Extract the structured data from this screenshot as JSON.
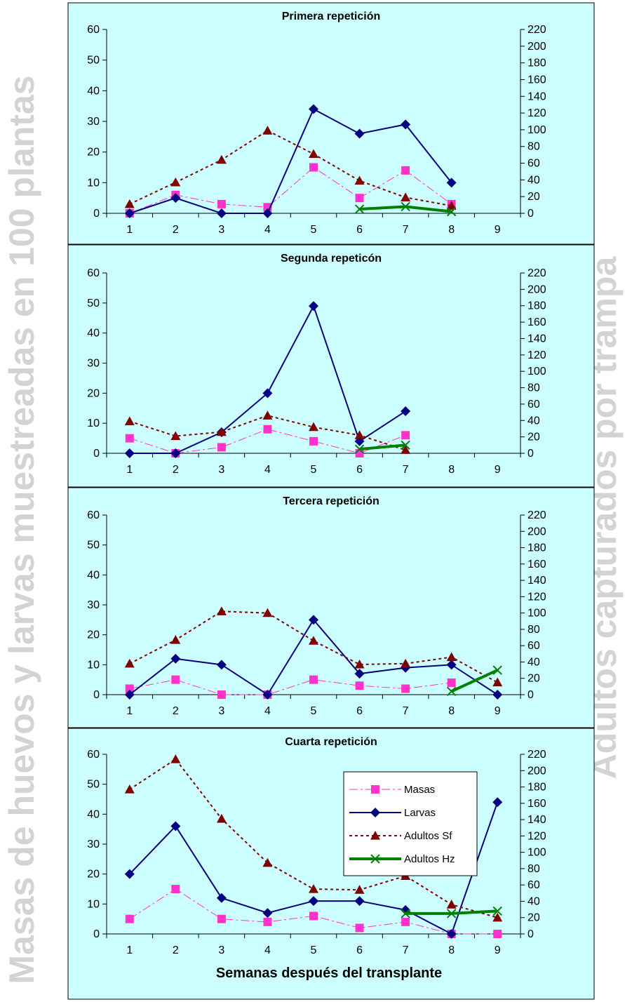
{
  "y_axis_title": "Masas de huevos y larvas muestreadas en 100 plantas",
  "y2_axis_title": "Adultos capturados por trampa",
  "x_axis_title": "Semanas después del transplante",
  "colors": {
    "background": "#ccffff",
    "masas": "#ff33cc",
    "larvas": "#000080",
    "adultos_sf": "#800000",
    "adultos_hz": "#008000",
    "side_label": "#d3d3d3"
  },
  "legend": {
    "masas": "Masas",
    "larvas": "Larvas",
    "adultos_sf": "Adultos Sf",
    "adultos_hz": "Adultos Hz"
  },
  "chart_data": [
    {
      "type": "line",
      "title": "Primera repetición",
      "x": [
        1,
        2,
        3,
        4,
        5,
        6,
        7,
        8,
        9
      ],
      "ylim": [
        0,
        60
      ],
      "y2lim": [
        0,
        220
      ],
      "yticks": [
        0,
        10,
        20,
        30,
        40,
        50,
        60
      ],
      "y2ticks": [
        0,
        20,
        40,
        60,
        80,
        100,
        120,
        140,
        160,
        180,
        200,
        220
      ],
      "series": [
        {
          "name": "Masas",
          "axis": "left",
          "values": [
            0,
            6,
            3,
            2,
            15,
            5,
            14,
            3,
            null
          ]
        },
        {
          "name": "Larvas",
          "axis": "left",
          "values": [
            0,
            5,
            0,
            0,
            34,
            26,
            29,
            10,
            null
          ]
        },
        {
          "name": "Adultos Sf",
          "axis": "right",
          "values": [
            11,
            37,
            64,
            99,
            71,
            39,
            19,
            9,
            null
          ]
        },
        {
          "name": "Adultos Hz",
          "axis": "right",
          "values": [
            null,
            null,
            null,
            null,
            null,
            5,
            8,
            2,
            null
          ]
        }
      ]
    },
    {
      "type": "line",
      "title": "Segunda repeticón",
      "x": [
        1,
        2,
        3,
        4,
        5,
        6,
        7,
        8,
        9
      ],
      "ylim": [
        0,
        60
      ],
      "y2lim": [
        0,
        220
      ],
      "yticks": [
        0,
        10,
        20,
        30,
        40,
        50,
        60
      ],
      "y2ticks": [
        0,
        20,
        40,
        60,
        80,
        100,
        120,
        140,
        160,
        180,
        200,
        220
      ],
      "series": [
        {
          "name": "Masas",
          "axis": "left",
          "values": [
            5,
            0,
            2,
            8,
            4,
            0,
            6,
            null,
            null
          ]
        },
        {
          "name": "Larvas",
          "axis": "left",
          "values": [
            0,
            0,
            7,
            20,
            49,
            4,
            14,
            null,
            null
          ]
        },
        {
          "name": "Adultos Sf",
          "axis": "right",
          "values": [
            39,
            21,
            26,
            46,
            32,
            22,
            4,
            null,
            null
          ]
        },
        {
          "name": "Adultos Hz",
          "axis": "right",
          "values": [
            null,
            null,
            null,
            null,
            null,
            5,
            10,
            null,
            null
          ]
        }
      ]
    },
    {
      "type": "line",
      "title": "Tercera repetición",
      "x": [
        1,
        2,
        3,
        4,
        5,
        6,
        7,
        8,
        9
      ],
      "ylim": [
        0,
        60
      ],
      "y2lim": [
        0,
        220
      ],
      "yticks": [
        0,
        10,
        20,
        30,
        40,
        50,
        60
      ],
      "y2ticks": [
        0,
        20,
        40,
        60,
        80,
        100,
        120,
        140,
        160,
        180,
        200,
        220
      ],
      "series": [
        {
          "name": "Masas",
          "axis": "left",
          "values": [
            2,
            5,
            0,
            0,
            5,
            3,
            2,
            4,
            null
          ]
        },
        {
          "name": "Larvas",
          "axis": "left",
          "values": [
            0,
            12,
            10,
            0,
            25,
            7,
            9,
            10,
            0
          ]
        },
        {
          "name": "Adultos Sf",
          "axis": "right",
          "values": [
            38,
            67,
            102,
            100,
            66,
            37,
            38,
            46,
            15
          ]
        },
        {
          "name": "Adultos Hz",
          "axis": "right",
          "values": [
            null,
            null,
            null,
            null,
            null,
            null,
            null,
            4,
            30
          ]
        }
      ]
    },
    {
      "type": "line",
      "title": "Cuarta repetición",
      "x": [
        1,
        2,
        3,
        4,
        5,
        6,
        7,
        8,
        9
      ],
      "ylim": [
        0,
        60
      ],
      "y2lim": [
        0,
        220
      ],
      "yticks": [
        0,
        10,
        20,
        30,
        40,
        50,
        60
      ],
      "y2ticks": [
        0,
        20,
        40,
        60,
        80,
        100,
        120,
        140,
        160,
        180,
        200,
        220
      ],
      "legend": true,
      "series": [
        {
          "name": "Masas",
          "axis": "left",
          "values": [
            5,
            15,
            5,
            4,
            6,
            2,
            4,
            0,
            0
          ]
        },
        {
          "name": "Larvas",
          "axis": "left",
          "values": [
            20,
            36,
            12,
            7,
            11,
            11,
            8,
            0,
            44
          ]
        },
        {
          "name": "Adultos Sf",
          "axis": "right",
          "values": [
            177,
            214,
            141,
            87,
            55,
            54,
            71,
            36,
            20
          ]
        },
        {
          "name": "Adultos Hz",
          "axis": "right",
          "values": [
            null,
            null,
            null,
            null,
            null,
            null,
            25,
            25,
            28
          ]
        }
      ]
    }
  ]
}
